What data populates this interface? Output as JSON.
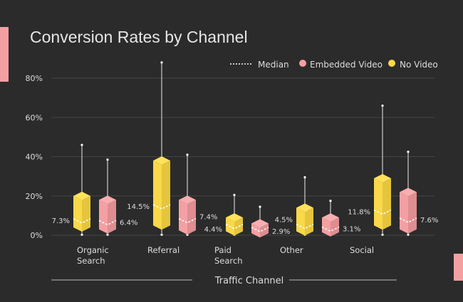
{
  "colors": {
    "background": "#2b2b2b",
    "no_video": "#f9d849",
    "embedded_video": "#f4a0a2",
    "grid": "#444444",
    "text": "#dddddd"
  },
  "chart_data": {
    "type": "boxplot",
    "title": "Conversion Rates by Channel",
    "xlabel": "Traffic Channel",
    "ylabel": "",
    "ylim": [
      0,
      80
    ],
    "yticks": [
      "0%",
      "20%",
      "40%",
      "60%",
      "80%"
    ],
    "ytick_values": [
      0,
      20,
      40,
      60,
      80
    ],
    "grid": true,
    "legend": {
      "placement": "top-right",
      "median_label": "Median",
      "entries": [
        "Embedded Video",
        "No Video"
      ]
    },
    "categories": [
      [
        "Organic",
        "Search"
      ],
      [
        "Referral"
      ],
      [
        "Paid",
        "Search"
      ],
      [
        "Other"
      ],
      [
        "Social"
      ]
    ],
    "series": [
      {
        "name": "No Video",
        "color": "#f9d849",
        "boxes": [
          {
            "min": 1,
            "q1": 4,
            "median": 7.3,
            "q3": 20,
            "max": 46,
            "label": "7.3%"
          },
          {
            "min": 1,
            "q1": 5,
            "median": 14.5,
            "q3": 38,
            "max": 88,
            "label": "14.5%"
          },
          {
            "min": 1,
            "q1": 2,
            "median": 4.4,
            "q3": 9,
            "max": 20.5,
            "label": "4.4%"
          },
          {
            "min": 1,
            "q1": 2,
            "median": 4.5,
            "q3": 14,
            "max": 29.5,
            "label": "4.5%"
          },
          {
            "min": 1,
            "q1": 5,
            "median": 11.8,
            "q3": 29,
            "max": 66,
            "label": "11.8%"
          }
        ]
      },
      {
        "name": "Embedded Video",
        "color": "#f4a0a2",
        "boxes": [
          {
            "min": 1,
            "q1": 3,
            "median": 6.4,
            "q3": 18,
            "max": 38.5,
            "label": "6.4%"
          },
          {
            "min": 1,
            "q1": 2.5,
            "median": 7.4,
            "q3": 18,
            "max": 41,
            "label": "7.4%"
          },
          {
            "min": 1,
            "q1": 1,
            "median": 2.9,
            "q3": 6,
            "max": 14.5,
            "label": "2.9%"
          },
          {
            "min": 1,
            "q1": 1.5,
            "median": 3.1,
            "q3": 9,
            "max": 17.5,
            "label": "3.1%"
          },
          {
            "min": 1,
            "q1": 3,
            "median": 7.6,
            "q3": 22,
            "max": 42.5,
            "label": "7.6%"
          }
        ]
      }
    ]
  }
}
